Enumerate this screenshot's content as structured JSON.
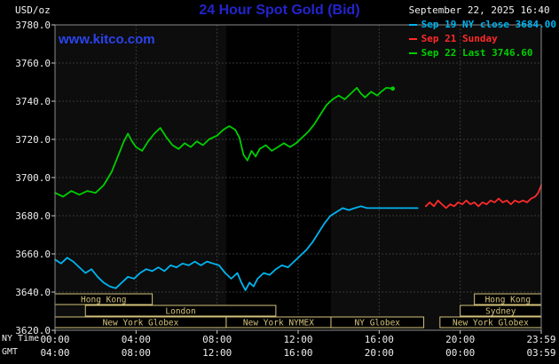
{
  "header": {
    "units_label": "USD/oz",
    "title": "24 Hour Spot Gold (Bid)",
    "title_color": "#2324cd",
    "datetime": "September 22, 2025 16:40",
    "watermark": "www.kitco.com",
    "watermark_color": "#2b43ee",
    "legend": [
      {
        "label": "Sep 19 NY close 3684.00",
        "color": "#00b4f0"
      },
      {
        "label": "Sep 21 Sunday",
        "color": "#ff2a2a"
      },
      {
        "label": "Sep 22 Last 3746.60",
        "color": "#00cf00"
      }
    ]
  },
  "axis": {
    "ny_label": "NY Time",
    "gmt_label": "GMT",
    "y_ticks": [
      "3780.0",
      "3760.0",
      "3740.0",
      "3720.0",
      "3700.0",
      "3680.0",
      "3660.0",
      "3640.0",
      "3620.0"
    ],
    "y_tick_values": [
      3780,
      3760,
      3740,
      3720,
      3700,
      3680,
      3660,
      3640,
      3620
    ],
    "x_tick_hours": [
      0,
      4,
      8,
      12,
      16,
      20,
      24
    ],
    "x_ticks_ny": [
      "00:00",
      "04:00",
      "08:00",
      "12:00",
      "16:00",
      "20:00",
      "23:59"
    ],
    "x_ticks_gmt": [
      "04:00",
      "08:00",
      "12:00",
      "16:00",
      "20:00",
      "00:00",
      "03:59"
    ]
  },
  "chart_data": {
    "type": "line",
    "title": "24 Hour Spot Gold (Bid)",
    "ylabel": "USD/oz",
    "xlabel": "NY Time (hours)",
    "xlim": [
      0,
      24
    ],
    "ylim": [
      3620,
      3780
    ],
    "grid": true,
    "legend_position": "top-right",
    "annotations": {
      "ny_close": 3684.0,
      "last": 3746.6
    },
    "colors": {
      "plot_bg": "#0d0d0d",
      "band": "#010101",
      "grid": "#343c34",
      "border": "#8a8a8a",
      "session": "#d3c27a",
      "tick": "#cccccc"
    },
    "nymex_band": [
      8.45,
      13.62
    ],
    "series": [
      {
        "name": "Sep 19 NY close 3684.00",
        "color": "#00b4f0",
        "points": [
          [
            0,
            3657
          ],
          [
            0.3,
            3655
          ],
          [
            0.6,
            3658
          ],
          [
            0.9,
            3656
          ],
          [
            1.2,
            3653
          ],
          [
            1.5,
            3650
          ],
          [
            1.8,
            3652
          ],
          [
            2.1,
            3648
          ],
          [
            2.4,
            3645
          ],
          [
            2.7,
            3643
          ],
          [
            3,
            3642
          ],
          [
            3.3,
            3645
          ],
          [
            3.6,
            3648
          ],
          [
            3.9,
            3647
          ],
          [
            4.2,
            3650
          ],
          [
            4.5,
            3652
          ],
          [
            4.8,
            3651
          ],
          [
            5.1,
            3653
          ],
          [
            5.4,
            3651
          ],
          [
            5.7,
            3654
          ],
          [
            6,
            3653
          ],
          [
            6.3,
            3655
          ],
          [
            6.6,
            3654
          ],
          [
            6.9,
            3656
          ],
          [
            7.2,
            3654
          ],
          [
            7.5,
            3656
          ],
          [
            7.8,
            3655
          ],
          [
            8.1,
            3654
          ],
          [
            8.4,
            3650
          ],
          [
            8.7,
            3647
          ],
          [
            9,
            3650
          ],
          [
            9.2,
            3645
          ],
          [
            9.4,
            3641
          ],
          [
            9.6,
            3645
          ],
          [
            9.8,
            3643
          ],
          [
            10,
            3647
          ],
          [
            10.3,
            3650
          ],
          [
            10.6,
            3649
          ],
          [
            10.9,
            3652
          ],
          [
            11.2,
            3654
          ],
          [
            11.5,
            3653
          ],
          [
            11.8,
            3656
          ],
          [
            12.1,
            3659
          ],
          [
            12.4,
            3662
          ],
          [
            12.7,
            3666
          ],
          [
            13,
            3671
          ],
          [
            13.3,
            3676
          ],
          [
            13.6,
            3680
          ],
          [
            13.9,
            3682
          ],
          [
            14.2,
            3684
          ],
          [
            14.5,
            3683
          ],
          [
            14.8,
            3684
          ],
          [
            15.1,
            3685
          ],
          [
            15.4,
            3684
          ],
          [
            16,
            3684
          ],
          [
            16.6,
            3684
          ],
          [
            17.2,
            3684
          ],
          [
            17.9,
            3684
          ]
        ]
      },
      {
        "name": "Sep 21 Sunday",
        "color": "#ff2a2a",
        "points": [
          [
            18.3,
            3685
          ],
          [
            18.5,
            3687
          ],
          [
            18.7,
            3685
          ],
          [
            18.9,
            3688
          ],
          [
            19.1,
            3686
          ],
          [
            19.3,
            3684
          ],
          [
            19.5,
            3686
          ],
          [
            19.7,
            3685
          ],
          [
            19.9,
            3687
          ],
          [
            20.1,
            3686
          ],
          [
            20.3,
            3688
          ],
          [
            20.5,
            3686
          ],
          [
            20.7,
            3687
          ],
          [
            20.9,
            3685
          ],
          [
            21.1,
            3687
          ],
          [
            21.3,
            3686
          ],
          [
            21.5,
            3688
          ],
          [
            21.7,
            3687
          ],
          [
            21.9,
            3689
          ],
          [
            22.1,
            3687
          ],
          [
            22.3,
            3688
          ],
          [
            22.5,
            3686
          ],
          [
            22.7,
            3688
          ],
          [
            22.9,
            3687
          ],
          [
            23.1,
            3688
          ],
          [
            23.3,
            3687
          ],
          [
            23.5,
            3689
          ],
          [
            23.7,
            3690
          ],
          [
            23.85,
            3692
          ],
          [
            24,
            3696
          ]
        ]
      },
      {
        "name": "Sep 22 Last 3746.60",
        "color": "#00cf00",
        "end_dot": true,
        "points": [
          [
            0,
            3692
          ],
          [
            0.4,
            3690
          ],
          [
            0.8,
            3693
          ],
          [
            1.2,
            3691
          ],
          [
            1.6,
            3693
          ],
          [
            2,
            3692
          ],
          [
            2.4,
            3696
          ],
          [
            2.8,
            3703
          ],
          [
            3.1,
            3711
          ],
          [
            3.4,
            3719
          ],
          [
            3.6,
            3723
          ],
          [
            3.8,
            3719
          ],
          [
            4,
            3716
          ],
          [
            4.3,
            3714
          ],
          [
            4.6,
            3719
          ],
          [
            4.9,
            3723
          ],
          [
            5.2,
            3726
          ],
          [
            5.5,
            3721
          ],
          [
            5.8,
            3717
          ],
          [
            6.1,
            3715
          ],
          [
            6.4,
            3718
          ],
          [
            6.7,
            3716
          ],
          [
            7,
            3719
          ],
          [
            7.3,
            3717
          ],
          [
            7.6,
            3720
          ],
          [
            8,
            3722
          ],
          [
            8.3,
            3725
          ],
          [
            8.6,
            3727
          ],
          [
            8.9,
            3725
          ],
          [
            9.1,
            3721
          ],
          [
            9.3,
            3712
          ],
          [
            9.5,
            3709
          ],
          [
            9.7,
            3714
          ],
          [
            9.9,
            3711
          ],
          [
            10.1,
            3715
          ],
          [
            10.4,
            3717
          ],
          [
            10.7,
            3714
          ],
          [
            11,
            3716
          ],
          [
            11.3,
            3718
          ],
          [
            11.6,
            3716
          ],
          [
            11.9,
            3718
          ],
          [
            12.2,
            3721
          ],
          [
            12.5,
            3724
          ],
          [
            12.8,
            3728
          ],
          [
            13.1,
            3733
          ],
          [
            13.4,
            3738
          ],
          [
            13.7,
            3741
          ],
          [
            14,
            3743
          ],
          [
            14.3,
            3741
          ],
          [
            14.6,
            3744
          ],
          [
            14.9,
            3747
          ],
          [
            15.1,
            3744
          ],
          [
            15.3,
            3742
          ],
          [
            15.6,
            3745
          ],
          [
            15.9,
            3743
          ],
          [
            16.1,
            3745
          ],
          [
            16.35,
            3747
          ],
          [
            16.67,
            3746.6
          ]
        ]
      }
    ],
    "sessions": [
      {
        "row": 0,
        "label": "Hong Kong",
        "start": 0,
        "end": 4.8
      },
      {
        "row": 0,
        "label": "Hong Kong",
        "start": 20.7,
        "end": 24
      },
      {
        "row": 1,
        "label": "London",
        "start": 1.5,
        "end": 10.9
      },
      {
        "row": 1,
        "label": "Sydney",
        "start": 20.0,
        "end": 24
      },
      {
        "row": 2,
        "label": "New York Globex",
        "start": 0,
        "end": 8.45
      },
      {
        "row": 2,
        "label": "New York NYMEX",
        "start": 8.45,
        "end": 13.62
      },
      {
        "row": 2,
        "label": "NY Globex",
        "start": 13.62,
        "end": 18.2
      },
      {
        "row": 2,
        "label": "New York Globex",
        "start": 19.0,
        "end": 24
      }
    ]
  }
}
